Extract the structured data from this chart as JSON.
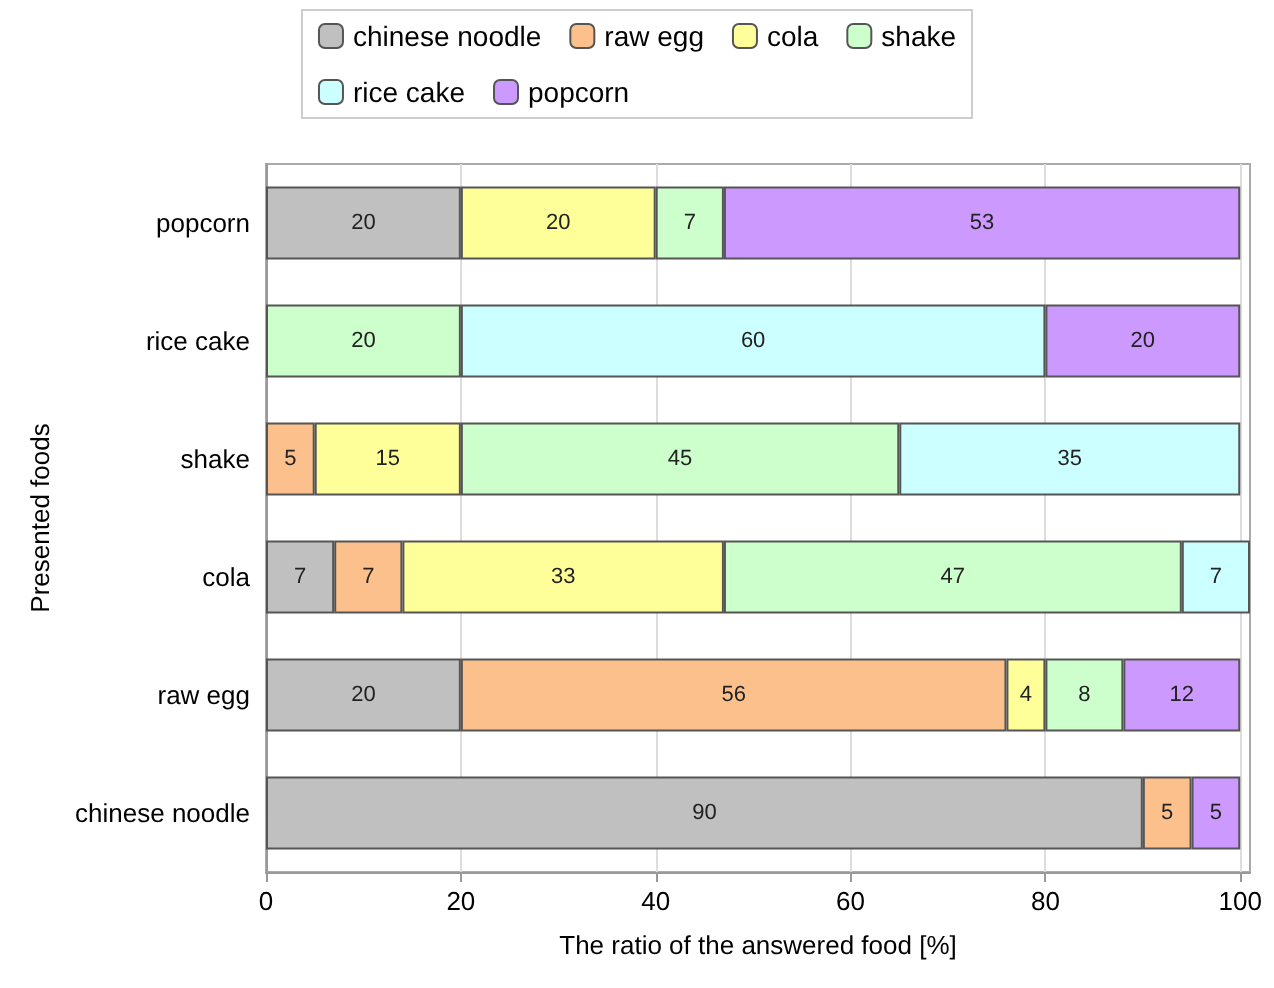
{
  "chart_data": {
    "type": "bar",
    "orientation": "horizontal",
    "stacked": true,
    "xlabel": "The ratio of the answered food [%]",
    "ylabel": "Presented foods",
    "categories": [
      "popcorn",
      "rice cake",
      "shake",
      "cola",
      "raw egg",
      "chinese noodle"
    ],
    "series": [
      {
        "name": "chinese noodle",
        "color": "#c0c0c0",
        "values": [
          20,
          null,
          null,
          7,
          20,
          90
        ]
      },
      {
        "name": "raw egg",
        "color": "#fbc08c",
        "values": [
          null,
          null,
          5,
          7,
          56,
          5
        ]
      },
      {
        "name": "cola",
        "color": "#ffff99",
        "values": [
          20,
          null,
          15,
          33,
          4,
          null
        ]
      },
      {
        "name": "shake",
        "color": "#ccffcc",
        "values": [
          7,
          20,
          45,
          47,
          8,
          null
        ]
      },
      {
        "name": "rice cake",
        "color": "#ccffff",
        "values": [
          null,
          60,
          35,
          7,
          null,
          null
        ]
      },
      {
        "name": "popcorn",
        "color": "#cc99ff",
        "values": [
          53,
          20,
          null,
          null,
          12,
          5
        ]
      }
    ],
    "xlim": [
      0,
      101
    ],
    "xticks": [
      0,
      20,
      40,
      60,
      80,
      100
    ],
    "grid": "x",
    "legend": "top",
    "data_labels": true
  }
}
